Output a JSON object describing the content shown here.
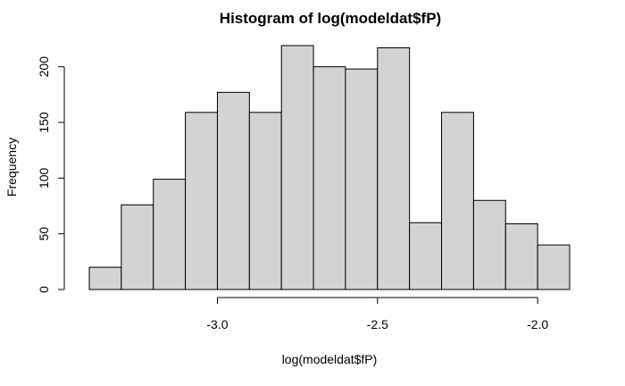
{
  "chart_data": {
    "type": "bar",
    "title": "Histogram of log(modeldat$fP)",
    "xlabel": "log(modeldat$fP)",
    "ylabel": "Frequency",
    "bins": [
      {
        "x0": -3.4,
        "x1": -3.3,
        "count": 20
      },
      {
        "x0": -3.3,
        "x1": -3.2,
        "count": 76
      },
      {
        "x0": -3.2,
        "x1": -3.1,
        "count": 99
      },
      {
        "x0": -3.1,
        "x1": -3.0,
        "count": 159
      },
      {
        "x0": -3.0,
        "x1": -2.9,
        "count": 177
      },
      {
        "x0": -2.9,
        "x1": -2.8,
        "count": 159
      },
      {
        "x0": -2.8,
        "x1": -2.7,
        "count": 219
      },
      {
        "x0": -2.7,
        "x1": -2.6,
        "count": 200
      },
      {
        "x0": -2.6,
        "x1": -2.5,
        "count": 198
      },
      {
        "x0": -2.5,
        "x1": -2.4,
        "count": 217
      },
      {
        "x0": -2.4,
        "x1": -2.3,
        "count": 60
      },
      {
        "x0": -2.3,
        "x1": -2.2,
        "count": 159
      },
      {
        "x0": -2.2,
        "x1": -2.1,
        "count": 80
      },
      {
        "x0": -2.1,
        "x1": -2.0,
        "count": 59
      },
      {
        "x0": -2.0,
        "x1": -1.9,
        "count": 40
      }
    ],
    "xlim": [
      -3.4,
      -1.9
    ],
    "ylim": [
      0,
      219
    ],
    "x_ticks": [
      -3.0,
      -2.5,
      -2.0
    ],
    "x_tick_labels": [
      "-3.0",
      "-2.5",
      "-2.0"
    ],
    "y_ticks": [
      0,
      50,
      100,
      150,
      200
    ],
    "y_tick_labels": [
      "0",
      "50",
      "100",
      "150",
      "200"
    ],
    "bar_fill": "#d3d3d3",
    "grid": false
  }
}
